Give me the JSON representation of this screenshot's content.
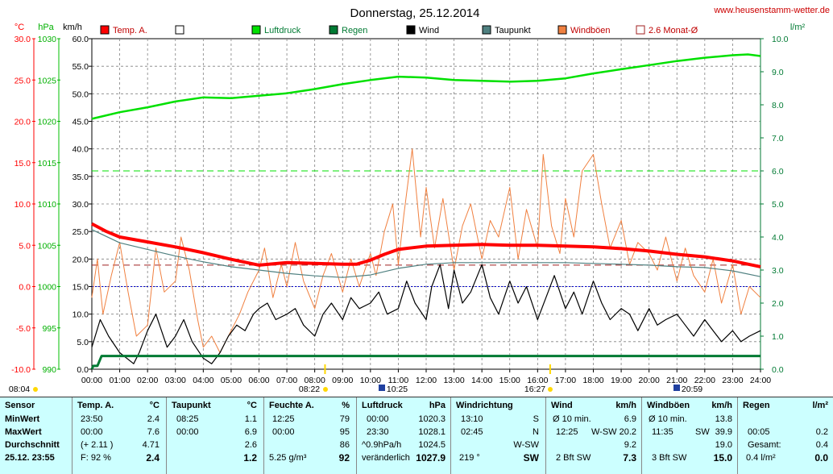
{
  "title": "Donnerstag, 25.12.2014",
  "site": "www.heusenstamm-wetter.de",
  "colors": {
    "temp": "#ff0000",
    "luftdruck": "#00e000",
    "regen": "#007a33",
    "wind": "#000000",
    "taupunkt": "#4f8080",
    "windboeen": "#f08040",
    "monat": "#a02020",
    "grid": "#808080"
  },
  "axis_units": {
    "temp": "°C",
    "pressure": "hPa",
    "wind": "km/h",
    "rain": "l/m²"
  },
  "chart_data": {
    "type": "line",
    "x_ticks": [
      "00:00",
      "01:00",
      "02:00",
      "03:00",
      "04:00",
      "05:00",
      "06:00",
      "07:00",
      "08:00",
      "09:00",
      "10:00",
      "11:00",
      "12:00",
      "13:00",
      "14:00",
      "15:00",
      "16:00",
      "17:00",
      "18:00",
      "19:00",
      "20:00",
      "21:00",
      "22:00",
      "23:00",
      "24:00"
    ],
    "x_range": [
      0,
      24
    ],
    "temp_axis": {
      "ticks": [
        "30.0",
        "25.0",
        "20.0",
        "15.0",
        "10.0",
        "5.0",
        "0.0",
        "-5.0",
        "-10.0"
      ],
      "range": [
        -10,
        30
      ]
    },
    "pressure_axis": {
      "ticks": [
        "1030",
        "1025",
        "1020",
        "1015",
        "1010",
        "1005",
        "1000",
        "995",
        "990"
      ],
      "range": [
        990,
        1030
      ]
    },
    "wind_axis": {
      "ticks": [
        "60.0",
        "55.0",
        "50.0",
        "45.0",
        "40.0",
        "35.0",
        "30.0",
        "25.0",
        "20.0",
        "15.0",
        "10.0",
        "5.0",
        "0.0"
      ],
      "range": [
        0,
        60
      ]
    },
    "rain_axis": {
      "ticks": [
        "10.0",
        "9.0",
        "8.0",
        "7.0",
        "6.0",
        "5.0",
        "4.0",
        "3.0",
        "2.0",
        "1.0",
        "0.0"
      ],
      "range": [
        0,
        10
      ]
    },
    "legend": [
      {
        "name": "Temp. A.",
        "key": "temp"
      },
      {
        "name": "",
        "key": "empty"
      },
      {
        "name": "Luftdruck",
        "key": "luftdruck"
      },
      {
        "name": "Regen",
        "key": "regen"
      },
      {
        "name": "Wind",
        "key": "wind"
      },
      {
        "name": "Taupunkt",
        "key": "taupunkt"
      },
      {
        "name": "Windböen",
        "key": "windboeen"
      },
      {
        "name": "2.6 Monat-Ø",
        "key": "monat"
      }
    ],
    "series": [
      {
        "name": "Temp. A.",
        "axis": "temp",
        "x": [
          0,
          0.5,
          1,
          2,
          3,
          4,
          5,
          6,
          7,
          8,
          9,
          9.5,
          10,
          10.5,
          11,
          11.5,
          12,
          13,
          14,
          15,
          16,
          17,
          18,
          19,
          20,
          21,
          22,
          23,
          24
        ],
        "y": [
          7.6,
          6.7,
          6.0,
          5.4,
          4.8,
          4.1,
          3.3,
          2.6,
          2.9,
          2.8,
          2.7,
          2.7,
          3.2,
          3.9,
          4.5,
          4.7,
          4.9,
          5.0,
          5.1,
          5.0,
          5.0,
          4.9,
          4.8,
          4.6,
          4.3,
          3.9,
          3.6,
          3.1,
          2.4
        ]
      },
      {
        "name": "Taupunkt",
        "axis": "temp",
        "x": [
          0,
          1,
          2,
          3,
          4,
          5,
          6,
          7,
          8,
          9,
          10,
          11,
          12,
          13,
          14,
          15,
          16,
          17,
          18,
          19,
          20,
          21,
          22,
          23,
          24
        ],
        "y": [
          6.9,
          5.3,
          4.5,
          3.7,
          3.0,
          2.4,
          2.0,
          1.6,
          1.3,
          1.1,
          1.4,
          2.2,
          2.7,
          2.9,
          2.9,
          2.9,
          2.9,
          2.9,
          2.8,
          2.7,
          2.6,
          2.4,
          2.3,
          1.9,
          1.2
        ]
      },
      {
        "name": "Luftdruck",
        "axis": "pressure",
        "x": [
          0,
          1,
          2,
          3,
          4,
          5,
          6,
          7,
          8,
          9,
          10,
          11,
          12,
          13,
          14,
          15,
          16,
          17,
          18,
          19,
          20,
          21,
          22,
          23,
          23.55,
          24
        ],
        "y": [
          1020.3,
          1021.1,
          1021.7,
          1022.4,
          1022.9,
          1022.8,
          1023.1,
          1023.4,
          1023.9,
          1024.5,
          1025.0,
          1025.4,
          1025.3,
          1025.0,
          1024.9,
          1024.8,
          1024.9,
          1025.2,
          1025.8,
          1026.3,
          1026.8,
          1027.3,
          1027.7,
          1028.0,
          1028.1,
          1027.9
        ]
      },
      {
        "name": "Regen",
        "axis": "rain",
        "x": [
          0,
          0.05,
          0.2,
          0.35,
          1,
          24
        ],
        "y": [
          0,
          0.1,
          0.1,
          0.4,
          0.4,
          0.4
        ]
      },
      {
        "name": "Wind",
        "axis": "wind",
        "x": [
          0,
          0.3,
          0.6,
          1,
          1.5,
          1.7,
          2,
          2.3,
          2.7,
          3,
          3.3,
          3.6,
          4,
          4.3,
          4.6,
          4.9,
          5.2,
          5.5,
          5.8,
          6,
          6.3,
          6.6,
          7,
          7.3,
          7.6,
          8,
          8.3,
          8.6,
          9,
          9.3,
          9.6,
          10,
          10.3,
          10.6,
          11,
          11.3,
          11.6,
          12,
          12.2,
          12.5,
          12.8,
          13,
          13.3,
          13.6,
          14,
          14.3,
          14.6,
          15,
          15.3,
          15.6,
          16,
          16.3,
          16.6,
          17,
          17.3,
          17.6,
          18,
          18.3,
          18.6,
          19,
          19.3,
          19.6,
          20,
          20.3,
          20.6,
          21,
          21.3,
          21.6,
          22,
          22.3,
          22.6,
          23,
          23.3,
          23.6,
          24
        ],
        "y": [
          4,
          9,
          6,
          3,
          1,
          3,
          7,
          10,
          4,
          6,
          9,
          5,
          2,
          1,
          3,
          6,
          8,
          7,
          10,
          11,
          12,
          9,
          10,
          11,
          8,
          6,
          10,
          12,
          9,
          13,
          11,
          12,
          14,
          10,
          11,
          16,
          12,
          9,
          15,
          19,
          11,
          18,
          12,
          14,
          19,
          13,
          10,
          16,
          12,
          15,
          9,
          13,
          17,
          11,
          14,
          10,
          16,
          12,
          9,
          11,
          10,
          7,
          11,
          8,
          9,
          10,
          8,
          6,
          9,
          7,
          5,
          7,
          5,
          6,
          7
        ]
      },
      {
        "name": "Windböen",
        "axis": "wind",
        "x": [
          0,
          0.2,
          0.4,
          0.7,
          1,
          1.3,
          1.6,
          2,
          2.3,
          2.6,
          3,
          3.2,
          3.5,
          3.8,
          4,
          4.3,
          4.6,
          5,
          5.3,
          5.6,
          6,
          6.2,
          6.5,
          6.8,
          7,
          7.3,
          7.6,
          8,
          8.3,
          8.6,
          9,
          9.3,
          9.6,
          10,
          10.2,
          10.5,
          10.8,
          11,
          11.2,
          11.5,
          11.8,
          12,
          12.3,
          12.6,
          13,
          13.3,
          13.6,
          14,
          14.3,
          14.6,
          15,
          15.3,
          15.6,
          16,
          16.2,
          16.5,
          16.8,
          17,
          17.3,
          17.6,
          18,
          18.3,
          18.6,
          19,
          19.3,
          19.6,
          20,
          20.3,
          20.6,
          21,
          21.3,
          21.6,
          22,
          22.3,
          22.6,
          23,
          23.3,
          23.6,
          24
        ],
        "y": [
          13,
          20,
          10,
          17,
          23,
          14,
          6,
          8,
          22,
          14,
          16,
          24,
          18,
          9,
          4,
          6,
          3,
          7,
          10,
          14,
          18,
          22,
          13,
          19,
          15,
          23,
          16,
          11,
          17,
          21,
          14,
          20,
          15,
          21,
          17,
          25,
          30,
          19,
          28,
          40,
          24,
          33,
          22,
          31,
          18,
          26,
          30,
          20,
          27,
          24,
          33,
          20,
          29,
          22,
          39,
          26,
          21,
          31,
          24,
          36,
          39,
          30,
          22,
          27,
          19,
          23,
          21,
          18,
          24,
          16,
          22,
          17,
          14,
          20,
          12,
          19,
          10,
          15,
          13
        ]
      }
    ],
    "reference_lines": [
      {
        "name": "2.6 Monat-Ø",
        "axis": "temp",
        "value": 2.6,
        "style": "dashed"
      },
      {
        "axis": "rain",
        "value": 6.0,
        "style": "dashed",
        "color": "luftdruck"
      },
      {
        "axis": "temp",
        "value": 0,
        "style": "dotted",
        "color": "#0000cc"
      }
    ]
  },
  "time_markers": {
    "sunrise": "08:22",
    "sunset": "16:27",
    "moonrise": "10:25",
    "moonset": "20:59",
    "start": "08:04"
  },
  "table": {
    "sensor": {
      "header": "Sensor",
      "rows": [
        "MinWert",
        "MaxWert",
        "Durchschnitt"
      ],
      "footer": "25.12. 23:55"
    },
    "temp": {
      "header": "Temp. A.",
      "unit": "°C",
      "min_time": "23:50",
      "min": "2.4",
      "max_time": "00:00",
      "max": "7.6",
      "avg_note": "(+ 2.11 )",
      "avg": "4.71",
      "footer_left": "F: 92 %",
      "footer_right": "2.4"
    },
    "taupunkt": {
      "header": "Taupunkt",
      "unit": "°C",
      "min_time": "08:25",
      "min": "1.1",
      "max_time": "00:00",
      "max": "6.9",
      "avg": "2.6",
      "footer": "1.2"
    },
    "feuchte": {
      "header": "Feuchte A.",
      "unit": "%",
      "min_time": "12:25",
      "min": "79",
      "max_time": "00:00",
      "max": "95",
      "avg": "86",
      "footer_left": "5.25 g/m³",
      "footer_right": "92"
    },
    "luftdruck": {
      "header": "Luftdruck",
      "unit": "hPa",
      "min_time": "00:00",
      "min": "1020.3",
      "max_time": "23:30",
      "max": "1028.1",
      "avg_note": "^0.9hPa/h",
      "avg": "1024.5",
      "footer_left": "veränderlich",
      "footer_right": "1027.9"
    },
    "windrichtung": {
      "header": "Windrichtung",
      "min_time": "13:10",
      "min": "S",
      "max_time": "02:45",
      "max": "N",
      "avg": "W-SW",
      "footer_left": "219 °",
      "footer_right": "SW"
    },
    "wind": {
      "header": "Wind",
      "unit": "km/h",
      "r1_left": "Ø 10 min.",
      "r1": "6.9",
      "r2_left": "12:25",
      "r2_mid": "W-SW",
      "r2": "20.2",
      "avg": "9.2",
      "footer_left": "2 Bft SW",
      "footer_right": "7.3"
    },
    "windboeen": {
      "header": "Windböen",
      "unit": "km/h",
      "r1_left": "Ø 10 min.",
      "r1": "13.8",
      "r2_left": "11:35",
      "r2_mid": "SW",
      "r2": "39.9",
      "avg": "19.0",
      "footer_left": "3 Bft SW",
      "footer_right": "15.0"
    },
    "regen": {
      "header": "Regen",
      "unit": "l/m²",
      "r1_left": "00:05",
      "r1": "0.2",
      "r2_left": "Gesamt:",
      "r2": "0.4",
      "footer_left": "0.4 l/m²",
      "footer_right": "0.0"
    }
  }
}
